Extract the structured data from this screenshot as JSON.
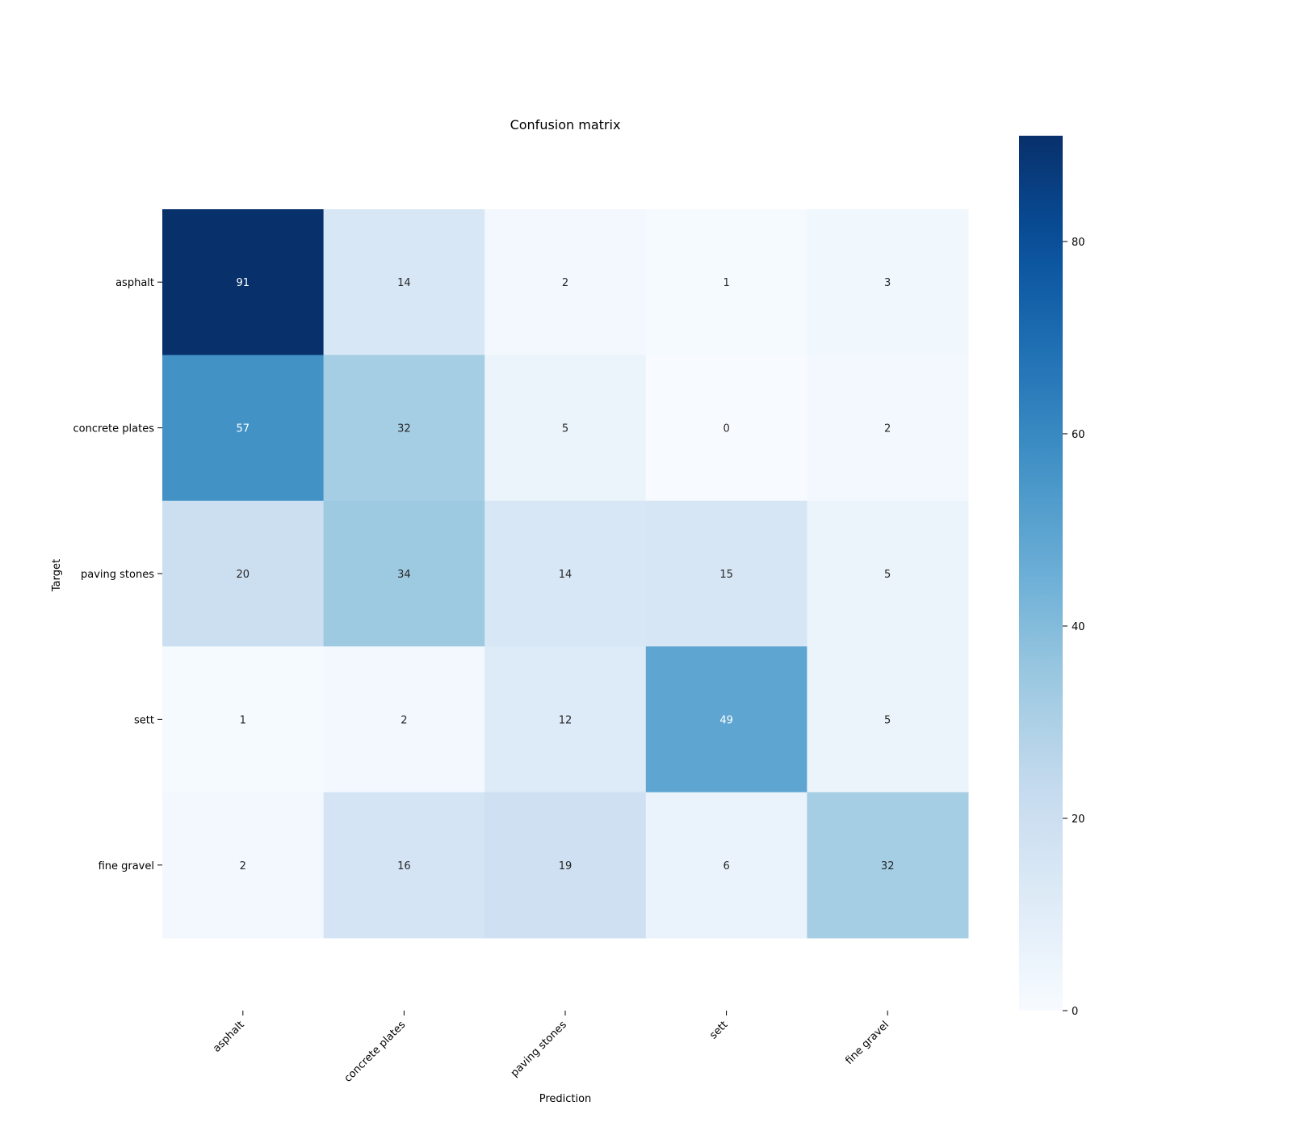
{
  "chart_data": {
    "type": "heatmap",
    "title": "Confusion matrix",
    "xlabel": "Prediction",
    "ylabel": "Target",
    "x_categories": [
      "asphalt",
      "concrete plates",
      "paving stones",
      "sett",
      "fine gravel"
    ],
    "y_categories": [
      "asphalt",
      "concrete plates",
      "paving stones",
      "sett",
      "fine gravel"
    ],
    "values": [
      [
        91,
        14,
        2,
        1,
        3
      ],
      [
        57,
        32,
        5,
        0,
        2
      ],
      [
        20,
        34,
        14,
        15,
        5
      ],
      [
        1,
        2,
        12,
        49,
        5
      ],
      [
        2,
        16,
        19,
        6,
        32
      ]
    ],
    "colormap": "Blues",
    "colorbar": {
      "range": [
        0,
        91
      ],
      "ticks": [
        0,
        20,
        40,
        60,
        80
      ]
    },
    "grid": false
  }
}
